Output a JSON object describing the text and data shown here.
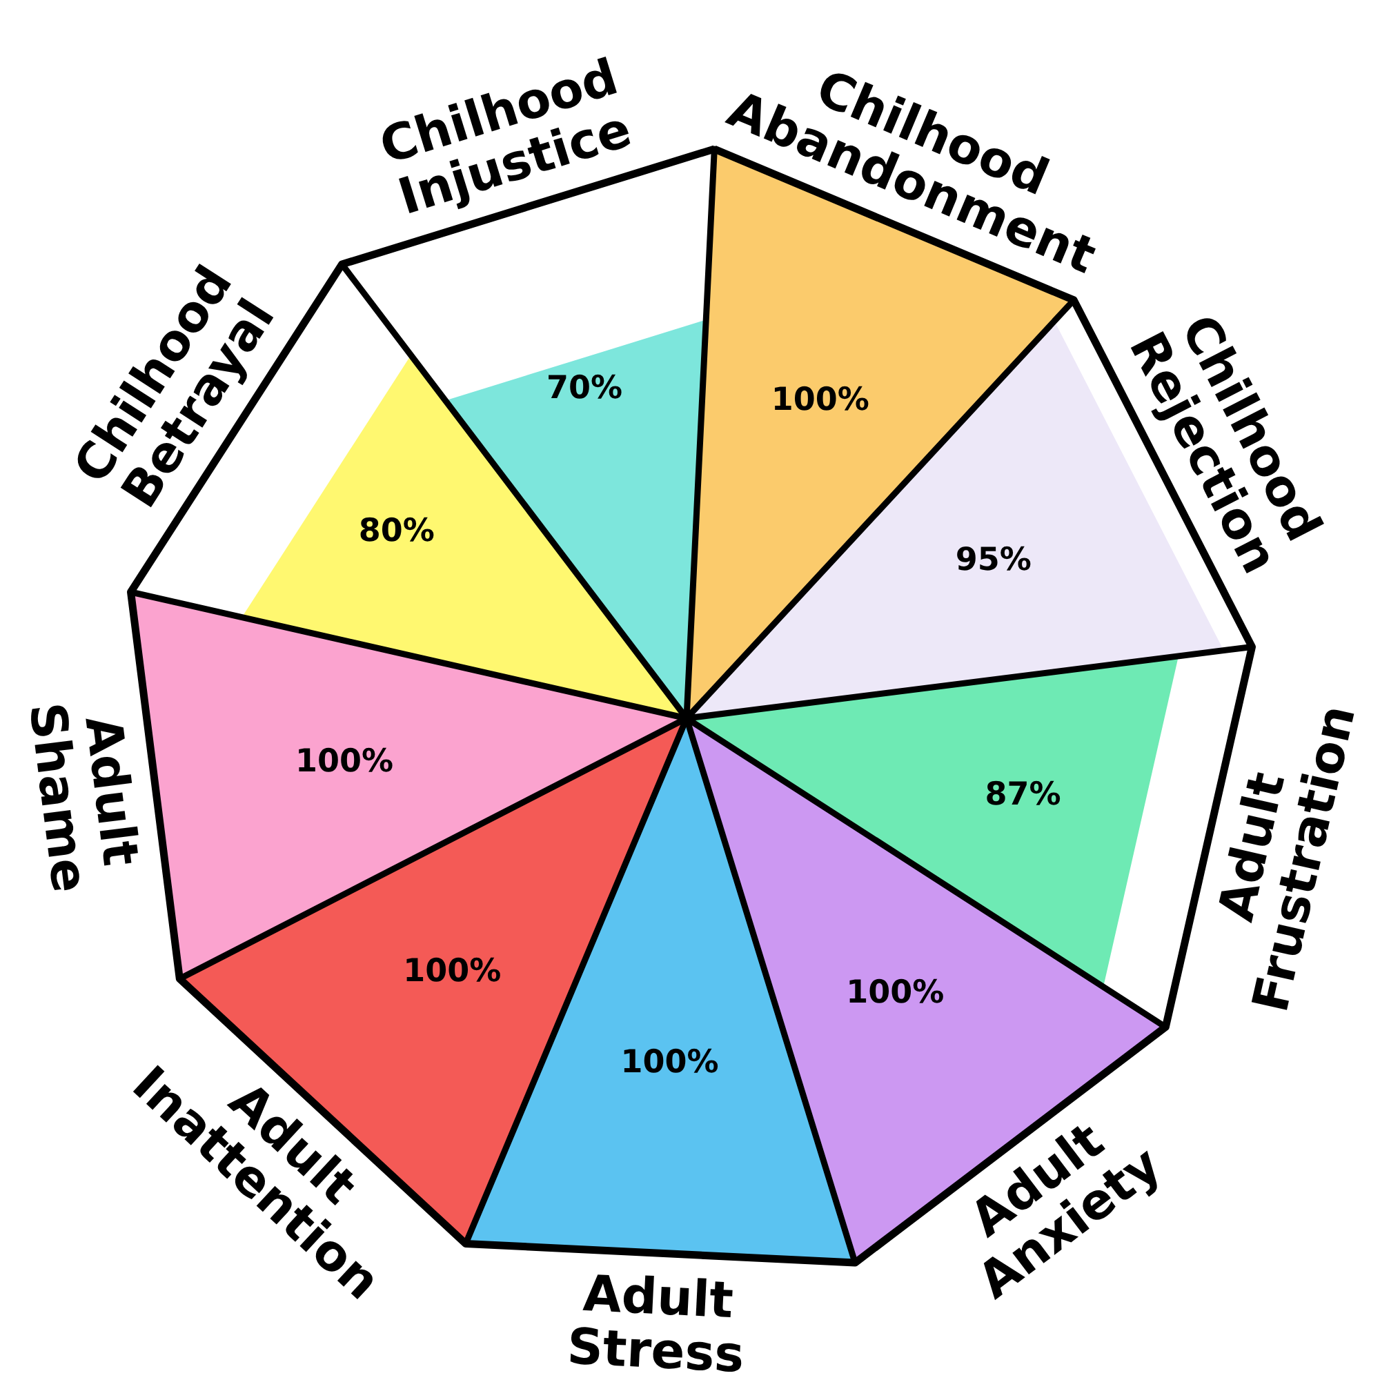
{
  "chart_data": {
    "type": "other",
    "categories": [
      "Chilhood Abandonment",
      "Chilhood Rejection",
      "Adult Frustration",
      "Adult Anxiety",
      "Adult Stress",
      "Adult Inattention",
      "Adult Shame",
      "Chilhood Betrayal",
      "Chilhood Injustice"
    ],
    "values": [
      100,
      95,
      87,
      100,
      100,
      100,
      100,
      80,
      70
    ],
    "value_labels": [
      "100%",
      "95%",
      "87%",
      "100%",
      "100%",
      "100%",
      "100%",
      "80%",
      "70%"
    ],
    "colors": [
      "#fbcb6c",
      "#ede8f8",
      "#6eeab4",
      "#cc98f2",
      "#5bc3f1",
      "#f45a56",
      "#fba3cf",
      "#fff870",
      "#7de6dc"
    ]
  }
}
